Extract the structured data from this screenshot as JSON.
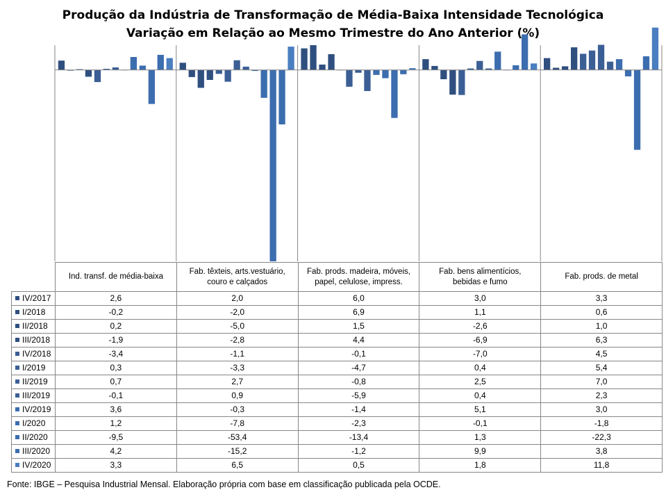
{
  "title": "Produção da Indústria de Transformação de Média-Baixa Intensidade Tecnológica",
  "subtitle": "Variação em Relação ao Mesmo Trimestre do Ano Anterior (%)",
  "source": "Fonte: IBGE – Pesquisa Industrial Mensal. Elaboração própria com base em classificação publicada pela OCDE.",
  "chart_data": {
    "type": "bar",
    "title": "Produção da Indústria de Transformação de Média-Baixa Intensidade Tecnológica",
    "subtitle": "Variação em Relação ao Mesmo Trimestre do Ano Anterior (%)",
    "ylim": [
      -53.4,
      6.9
    ],
    "grid": false,
    "legend": "data table below chart",
    "categories": [
      "Ind. transf. de média-baixa",
      "Fab. têxteis, arts.vestuário, couro e calçados",
      "Fab. prods. madeira, móveis, papel, celulose, impress.",
      "Fab. bens alimentícios, bebidas e fumo",
      "Fab. prods. de metal"
    ],
    "category_lines": [
      [
        "Ind. transf. de média-baixa"
      ],
      [
        "Fab. têxteis, arts.vestuário,",
        "couro e calçados"
      ],
      [
        "Fab. prods. madeira, móveis,",
        "papel, celulose, impress."
      ],
      [
        "Fab. bens alimentícios,",
        "bebidas e fumo"
      ],
      [
        "Fab. prods. de metal"
      ]
    ],
    "series": [
      {
        "name": "IV/2017",
        "color": "#2F4F7F",
        "values": [
          "2,6",
          "2,0",
          "6,0",
          "3,0",
          "3,3"
        ]
      },
      {
        "name": "I/2018",
        "color": "#2F4F7F",
        "values": [
          "-0,2",
          "-2,0",
          "6,9",
          "1,1",
          "0,6"
        ]
      },
      {
        "name": "II/2018",
        "color": "#2F4F7F",
        "values": [
          "0,2",
          "-5,0",
          "1,5",
          "-2,6",
          "1,0"
        ]
      },
      {
        "name": "III/2018",
        "color": "#2F4F7F",
        "values": [
          "-1,9",
          "-2,8",
          "4,4",
          "-6,9",
          "6,3"
        ]
      },
      {
        "name": "IV/2018",
        "color": "#3B5F95",
        "values": [
          "-3,4",
          "-1,1",
          "-0,1",
          "-7,0",
          "4,5"
        ]
      },
      {
        "name": "I/2019",
        "color": "#3B5F95",
        "values": [
          "0,3",
          "-3,3",
          "-4,7",
          "0,4",
          "5,4"
        ]
      },
      {
        "name": "II/2019",
        "color": "#3B5F95",
        "values": [
          "0,7",
          "2,7",
          "-0,8",
          "2,5",
          "7,0"
        ]
      },
      {
        "name": "III/2019",
        "color": "#3B5F95",
        "values": [
          "-0,1",
          "0,9",
          "-5,9",
          "0,4",
          "2,3"
        ]
      },
      {
        "name": "IV/2019",
        "color": "#3C6DAF",
        "values": [
          "3,6",
          "-0,3",
          "-1,4",
          "5,1",
          "3,0"
        ]
      },
      {
        "name": "I/2020",
        "color": "#3C6DAF",
        "values": [
          "1,2",
          "-7,8",
          "-2,3",
          "-0,1",
          "-1,8"
        ]
      },
      {
        "name": "II/2020",
        "color": "#3C6DAF",
        "values": [
          "-9,5",
          "-53,4",
          "-13,4",
          "1,3",
          "-22,3"
        ]
      },
      {
        "name": "III/2020",
        "color": "#3C6DAF",
        "values": [
          "4,2",
          "-15,2",
          "-1,2",
          "9,9",
          "3,8"
        ]
      },
      {
        "name": "IV/2020",
        "color": "#4A7EC0",
        "values": [
          "3,3",
          "6,5",
          "0,5",
          "1,8",
          "11,8"
        ]
      }
    ]
  }
}
